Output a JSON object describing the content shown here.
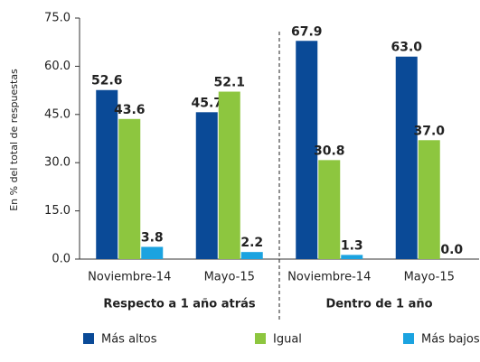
{
  "chart_data": {
    "type": "bar",
    "y_label": "En % del total de respuestas",
    "categories": [
      "Noviembre-14",
      "Mayo-15",
      "Noviembre-14",
      "Mayo-15"
    ],
    "groups": [
      "Respecto a 1 año atrás",
      "Dentro de 1 año"
    ],
    "series": [
      {
        "name": "Más altos",
        "color": "#0a4a97",
        "values": [
          52.6,
          45.7,
          67.9,
          63.0
        ],
        "value_labels": [
          "52.6",
          "45.7",
          "67.9",
          "63.0"
        ]
      },
      {
        "name": "Igual",
        "color": "#8dc63f",
        "values": [
          43.6,
          52.1,
          30.8,
          37.0
        ],
        "value_labels": [
          "43.6",
          "52.1",
          "30.8",
          "37.0"
        ]
      },
      {
        "name": "Más bajos",
        "color": "#1ba3e0",
        "values": [
          3.8,
          2.2,
          1.3,
          0.0
        ],
        "value_labels": [
          "3.8",
          "2.2",
          "1.3",
          "0.0"
        ]
      }
    ],
    "ylim": [
      0,
      75
    ],
    "yticks": [
      {
        "value": 0,
        "label": "0.0"
      },
      {
        "value": 15,
        "label": "15.0"
      },
      {
        "value": 30,
        "label": "30.0"
      },
      {
        "value": 45,
        "label": "45.0"
      },
      {
        "value": 60,
        "label": "60.0"
      },
      {
        "value": 75,
        "label": "75.0"
      }
    ],
    "legend": "bottom"
  }
}
